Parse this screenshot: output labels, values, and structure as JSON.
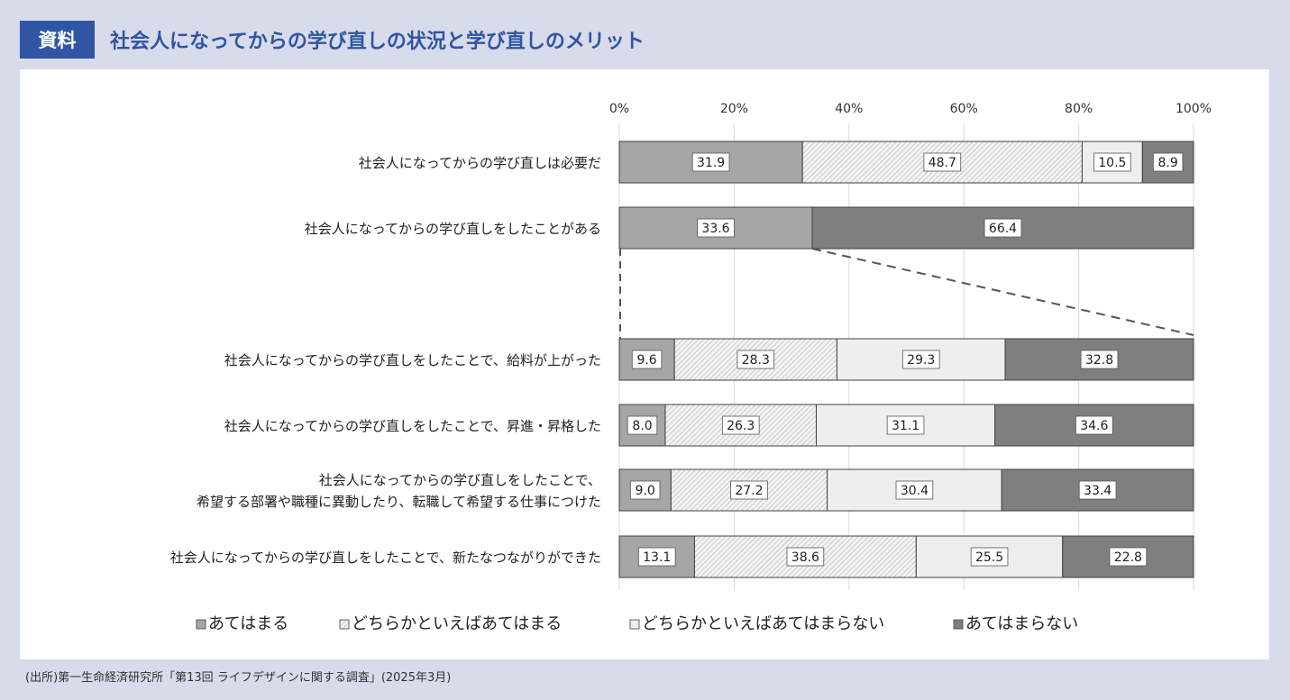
{
  "header": {
    "tag": "資料",
    "title": "社会人になってからの学び直しの状況と学び直しのメリット"
  },
  "footer": {
    "source": "(出所)第一生命経済研究所「第13回 ライフデザインに関する調査」(2025年3月)"
  },
  "colors": {
    "s0": "#a6a6a6",
    "s1": "#e6e6e6",
    "s2": "#eeeeee",
    "s3": "#7f7f7f",
    "grid": "#d9d9d9",
    "edge": "#404040"
  },
  "chart_data": {
    "type": "bar",
    "orientation": "horizontal",
    "stacked": true,
    "xlim": [
      0,
      100
    ],
    "ticks": [
      "0%",
      "20%",
      "40%",
      "60%",
      "80%",
      "100%"
    ],
    "tick_values": [
      0,
      20,
      40,
      60,
      80,
      100
    ],
    "categories": [
      {
        "lines": [
          "社会人になってからの学び直しは必要だ"
        ],
        "values": [
          31.9,
          48.7,
          10.5,
          8.9
        ],
        "styles": [
          0,
          1,
          2,
          3
        ],
        "labels": [
          "31.9",
          "48.7",
          "10.5",
          "8.9"
        ]
      },
      {
        "lines": [
          "社会人になってからの学び直しをしたことがある"
        ],
        "values": [
          33.6,
          66.4
        ],
        "styles": [
          0,
          3
        ],
        "labels": [
          "33.6",
          "66.4"
        ]
      },
      {
        "lines": [
          "社会人になってからの学び直しをしたことで、給料が上がった"
        ],
        "values": [
          9.6,
          28.3,
          29.3,
          32.8
        ],
        "styles": [
          0,
          1,
          2,
          3
        ],
        "labels": [
          "9.6",
          "28.3",
          "29.3",
          "32.8"
        ]
      },
      {
        "lines": [
          "社会人になってからの学び直しをしたことで、昇進・昇格した"
        ],
        "values": [
          8.0,
          26.3,
          31.1,
          34.6
        ],
        "styles": [
          0,
          1,
          2,
          3
        ],
        "labels": [
          "8.0",
          "26.3",
          "31.1",
          "34.6"
        ]
      },
      {
        "lines": [
          "社会人になってからの学び直しをしたことで、",
          "希望する部署や職種に異動したり、転職して希望する仕事につけた"
        ],
        "values": [
          9.0,
          27.2,
          30.4,
          33.4
        ],
        "styles": [
          0,
          1,
          2,
          3
        ],
        "labels": [
          "9.0",
          "27.2",
          "30.4",
          "33.4"
        ]
      },
      {
        "lines": [
          "社会人になってからの学び直しをしたことで、新たなつながりができた"
        ],
        "values": [
          13.1,
          38.6,
          25.5,
          22.8
        ],
        "styles": [
          0,
          1,
          2,
          3
        ],
        "labels": [
          "13.1",
          "38.6",
          "25.5",
          "22.8"
        ]
      }
    ],
    "legend": [
      "あてはまる",
      "どちらかといえばあてはまる",
      "どちらかといえばあてはまらない",
      "あてはまらない"
    ],
    "legend_position": "bottom"
  }
}
